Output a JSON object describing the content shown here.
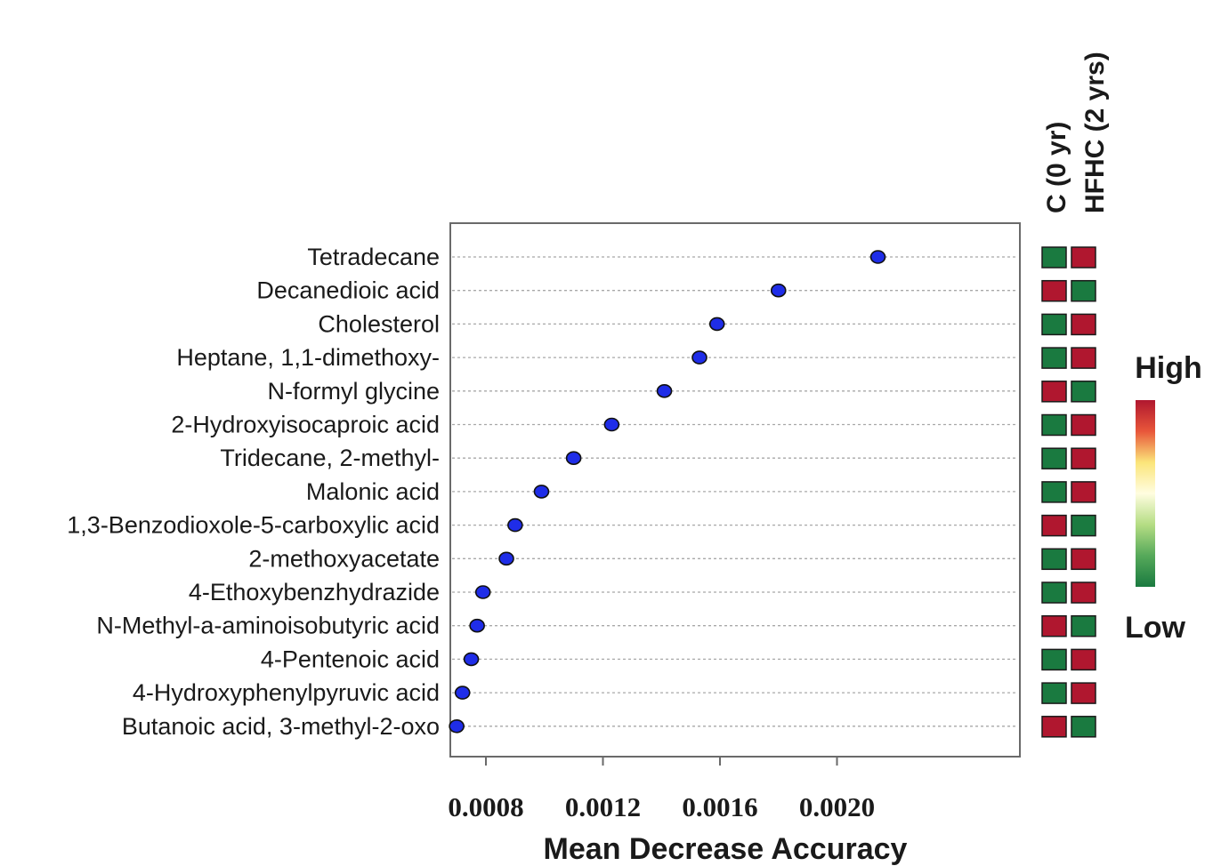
{
  "chart_data": {
    "type": "scatter",
    "xlabel": "Mean Decrease Accuracy",
    "xlim": [
      0.00065,
      0.0022
    ],
    "xticks": [
      0.0008,
      0.0012,
      0.0016,
      0.002
    ],
    "xtick_labels": [
      "0.0008",
      "0.0012",
      "0.0016",
      "0.0020"
    ],
    "grid": "horizontal dotted",
    "point_color": "#1f2de8",
    "categories": [
      "Tetradecane",
      "Decanedioic acid",
      "Cholesterol",
      "Heptane, 1,1-dimethoxy-",
      "N-formyl glycine",
      "2-Hydroxyisocaproic acid",
      "Tridecane, 2-methyl-",
      "Malonic acid",
      "1,3-Benzodioxole-5-carboxylic acid",
      "2-methoxyacetate",
      "4-Ethoxybenzhydrazide",
      "N-Methyl-a-aminoisobutyric acid",
      "4-Pentenoic acid",
      "4-Hydroxyphenylpyruvic acid",
      "Butanoic acid, 3-methyl-2-oxo"
    ],
    "values": [
      0.00214,
      0.0018,
      0.00159,
      0.00153,
      0.00141,
      0.00123,
      0.0011,
      0.00099,
      0.0009,
      0.00087,
      0.00079,
      0.00077,
      0.00075,
      0.00072,
      0.0007
    ],
    "heatmap": {
      "columns": [
        "C (0 yr)",
        "HFHC (2 yrs)"
      ],
      "levels": [
        [
          "low",
          "high"
        ],
        [
          "high",
          "low"
        ],
        [
          "low",
          "high"
        ],
        [
          "low",
          "high"
        ],
        [
          "high",
          "low"
        ],
        [
          "low",
          "high"
        ],
        [
          "low",
          "high"
        ],
        [
          "low",
          "high"
        ],
        [
          "high",
          "low"
        ],
        [
          "low",
          "high"
        ],
        [
          "low",
          "high"
        ],
        [
          "high",
          "low"
        ],
        [
          "low",
          "high"
        ],
        [
          "low",
          "high"
        ],
        [
          "high",
          "low"
        ]
      ],
      "colors": {
        "high": "#b0172f",
        "low": "#1a7a40"
      }
    },
    "legend": {
      "high_label": "High",
      "low_label": "Low",
      "gradient": [
        "#b0172f",
        "#e8563a",
        "#fbe57a",
        "#fffde0",
        "#b5dd84",
        "#56a95a",
        "#1a7a40"
      ]
    }
  }
}
